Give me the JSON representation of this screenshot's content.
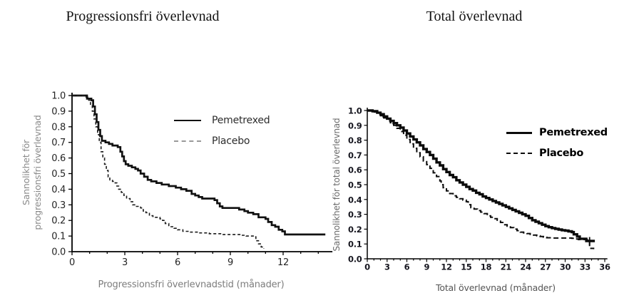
{
  "chart_data": [
    {
      "type": "line",
      "subtype": "kaplan-meier-step",
      "title": "Progressionsfri överlevnad",
      "xlabel": "Progressionsfri överlevnadstid (månader)",
      "ylabel_lines": [
        "Sannolikhet för",
        "progressionsfri överlevnad"
      ],
      "xlim": [
        0,
        14.8
      ],
      "ylim": [
        0,
        1.0
      ],
      "x_tick_values": [
        0,
        3,
        6,
        9,
        12
      ],
      "x_tick_labels": [
        "0",
        "3",
        "6",
        "9",
        "12"
      ],
      "x_minor_tick_step": 1,
      "x_minor_tick_max": 14,
      "y_tick_labels": [
        "0.0",
        "0.1",
        "0.2",
        "0.3",
        "0.4",
        "0.5",
        "0.6",
        "0.7",
        "0.8",
        "0.9",
        "1.0"
      ],
      "grid": false,
      "legend_position": "upper-right-inside",
      "series": [
        {
          "name": "Pemetrexed",
          "line_style": "solid",
          "color": "#111111",
          "legend_sample_color": "#111111",
          "points": [
            [
              0,
              1.0
            ],
            [
              0.85,
              0.98
            ],
            [
              1.1,
              0.97
            ],
            [
              1.2,
              0.93
            ],
            [
              1.3,
              0.88
            ],
            [
              1.4,
              0.83
            ],
            [
              1.5,
              0.78
            ],
            [
              1.6,
              0.74
            ],
            [
              1.7,
              0.71
            ],
            [
              1.9,
              0.7
            ],
            [
              2.1,
              0.69
            ],
            [
              2.3,
              0.68
            ],
            [
              2.6,
              0.67
            ],
            [
              2.75,
              0.64
            ],
            [
              2.85,
              0.61
            ],
            [
              2.95,
              0.58
            ],
            [
              3.05,
              0.56
            ],
            [
              3.2,
              0.55
            ],
            [
              3.4,
              0.54
            ],
            [
              3.6,
              0.53
            ],
            [
              3.75,
              0.52
            ],
            [
              3.9,
              0.5
            ],
            [
              4.1,
              0.48
            ],
            [
              4.3,
              0.46
            ],
            [
              4.5,
              0.45
            ],
            [
              4.8,
              0.44
            ],
            [
              5.1,
              0.43
            ],
            [
              5.5,
              0.42
            ],
            [
              5.9,
              0.41
            ],
            [
              6.2,
              0.4
            ],
            [
              6.5,
              0.39
            ],
            [
              6.8,
              0.37
            ],
            [
              7.0,
              0.36
            ],
            [
              7.2,
              0.35
            ],
            [
              7.4,
              0.34
            ],
            [
              8.1,
              0.33
            ],
            [
              8.25,
              0.31
            ],
            [
              8.4,
              0.29
            ],
            [
              8.55,
              0.28
            ],
            [
              9.5,
              0.27
            ],
            [
              9.8,
              0.26
            ],
            [
              10.0,
              0.25
            ],
            [
              10.3,
              0.24
            ],
            [
              10.6,
              0.22
            ],
            [
              11.0,
              0.21
            ],
            [
              11.15,
              0.19
            ],
            [
              11.35,
              0.17
            ],
            [
              11.55,
              0.16
            ],
            [
              11.75,
              0.14
            ],
            [
              11.95,
              0.13
            ],
            [
              12.1,
              0.11
            ],
            [
              14.4,
              0.11
            ]
          ]
        },
        {
          "name": "Placebo",
          "line_style": "dashed",
          "color": "#1a1a1a",
          "legend_sample_color": "#999999",
          "points": [
            [
              0,
              1.0
            ],
            [
              0.8,
              0.99
            ],
            [
              0.95,
              0.97
            ],
            [
              1.05,
              0.94
            ],
            [
              1.15,
              0.9
            ],
            [
              1.25,
              0.85
            ],
            [
              1.35,
              0.8
            ],
            [
              1.45,
              0.75
            ],
            [
              1.55,
              0.7
            ],
            [
              1.65,
              0.64
            ],
            [
              1.75,
              0.6
            ],
            [
              1.85,
              0.56
            ],
            [
              1.95,
              0.52
            ],
            [
              2.05,
              0.48
            ],
            [
              2.15,
              0.46
            ],
            [
              2.3,
              0.45
            ],
            [
              2.45,
              0.44
            ],
            [
              2.55,
              0.42
            ],
            [
              2.65,
              0.4
            ],
            [
              2.8,
              0.38
            ],
            [
              2.95,
              0.36
            ],
            [
              3.1,
              0.34
            ],
            [
              3.3,
              0.32
            ],
            [
              3.45,
              0.3
            ],
            [
              3.6,
              0.29
            ],
            [
              3.9,
              0.28
            ],
            [
              4.05,
              0.26
            ],
            [
              4.2,
              0.25
            ],
            [
              4.4,
              0.23
            ],
            [
              4.6,
              0.22
            ],
            [
              5.0,
              0.21
            ],
            [
              5.15,
              0.2
            ],
            [
              5.3,
              0.18
            ],
            [
              5.5,
              0.16
            ],
            [
              5.8,
              0.15
            ],
            [
              6.0,
              0.14
            ],
            [
              6.3,
              0.13
            ],
            [
              6.7,
              0.125
            ],
            [
              7.2,
              0.12
            ],
            [
              7.8,
              0.115
            ],
            [
              8.5,
              0.11
            ],
            [
              9.6,
              0.105
            ],
            [
              9.9,
              0.1
            ],
            [
              10.3,
              0.095
            ],
            [
              10.45,
              0.07
            ],
            [
              10.6,
              0.05
            ],
            [
              10.75,
              0.03
            ],
            [
              10.9,
              0.02
            ]
          ]
        }
      ]
    },
    {
      "type": "line",
      "subtype": "kaplan-meier-step",
      "title": "Total överlevnad",
      "xlabel": "Total överlevnad (månader)",
      "ylabel": "Sannolikhet för total överlevnad",
      "xlim": [
        0,
        36.4
      ],
      "ylim": [
        0,
        1.0
      ],
      "x_tick_values": [
        0,
        3,
        6,
        9,
        12,
        15,
        18,
        21,
        24,
        27,
        30,
        33,
        36
      ],
      "x_tick_labels": [
        "0",
        "3",
        "6",
        "9",
        "12",
        "15",
        "18",
        "21",
        "24",
        "27",
        "30",
        "33",
        "36"
      ],
      "x_minor_tick_step": 1,
      "x_minor_tick_max": 36,
      "y_tick_labels": [
        "0.0",
        "0.1",
        "0.2",
        "0.3",
        "0.4",
        "0.5",
        "0.6",
        "0.7",
        "0.8",
        "0.9",
        "1.0"
      ],
      "grid": false,
      "legend_position": "upper-right-inside",
      "series": [
        {
          "name": "Pemetrexed",
          "line_style": "solid",
          "color": "#0b0b0b",
          "legend_sample_color": "#0b0b0b",
          "censor_marks": [
            [
              33.7,
              0.12
            ]
          ],
          "points": [
            [
              0,
              1.0
            ],
            [
              0.8,
              0.995
            ],
            [
              1.5,
              0.985
            ],
            [
              2,
              0.975
            ],
            [
              2.5,
              0.96
            ],
            [
              3,
              0.945
            ],
            [
              3.5,
              0.93
            ],
            [
              4,
              0.915
            ],
            [
              4.5,
              0.9
            ],
            [
              5,
              0.885
            ],
            [
              5.5,
              0.865
            ],
            [
              6,
              0.845
            ],
            [
              6.5,
              0.825
            ],
            [
              7,
              0.805
            ],
            [
              7.5,
              0.785
            ],
            [
              8,
              0.765
            ],
            [
              8.5,
              0.74
            ],
            [
              9,
              0.72
            ],
            [
              9.5,
              0.7
            ],
            [
              10,
              0.675
            ],
            [
              10.5,
              0.65
            ],
            [
              11,
              0.63
            ],
            [
              11.5,
              0.605
            ],
            [
              12,
              0.585
            ],
            [
              12.5,
              0.565
            ],
            [
              13,
              0.55
            ],
            [
              13.5,
              0.53
            ],
            [
              14,
              0.515
            ],
            [
              14.5,
              0.5
            ],
            [
              15,
              0.485
            ],
            [
              15.5,
              0.47
            ],
            [
              16,
              0.46
            ],
            [
              16.5,
              0.445
            ],
            [
              17,
              0.435
            ],
            [
              17.5,
              0.42
            ],
            [
              18,
              0.41
            ],
            [
              18.5,
              0.4
            ],
            [
              19,
              0.39
            ],
            [
              19.5,
              0.38
            ],
            [
              20,
              0.37
            ],
            [
              20.5,
              0.36
            ],
            [
              21,
              0.35
            ],
            [
              21.5,
              0.34
            ],
            [
              22,
              0.33
            ],
            [
              22.5,
              0.32
            ],
            [
              23,
              0.31
            ],
            [
              23.5,
              0.3
            ],
            [
              24,
              0.29
            ],
            [
              24.5,
              0.275
            ],
            [
              25,
              0.26
            ],
            [
              25.5,
              0.25
            ],
            [
              26,
              0.24
            ],
            [
              26.5,
              0.23
            ],
            [
              27,
              0.22
            ],
            [
              27.5,
              0.213
            ],
            [
              28,
              0.207
            ],
            [
              28.5,
              0.202
            ],
            [
              29,
              0.197
            ],
            [
              29.5,
              0.193
            ],
            [
              30,
              0.19
            ],
            [
              30.5,
              0.185
            ],
            [
              31,
              0.18
            ],
            [
              31.3,
              0.165
            ],
            [
              31.8,
              0.15
            ],
            [
              32.2,
              0.135
            ],
            [
              33.2,
              0.12
            ],
            [
              34.5,
              0.12
            ]
          ]
        },
        {
          "name": "Placebo",
          "line_style": "dashed",
          "color": "#0b0b0b",
          "legend_sample_color": "#0b0b0b",
          "points": [
            [
              0,
              1.0
            ],
            [
              0.7,
              0.99
            ],
            [
              1.5,
              0.98
            ],
            [
              2,
              0.965
            ],
            [
              2.5,
              0.95
            ],
            [
              3,
              0.935
            ],
            [
              3.5,
              0.918
            ],
            [
              4,
              0.9
            ],
            [
              4.5,
              0.88
            ],
            [
              5,
              0.858
            ],
            [
              5.5,
              0.833
            ],
            [
              6,
              0.805
            ],
            [
              6.5,
              0.775
            ],
            [
              7,
              0.745
            ],
            [
              7.5,
              0.715
            ],
            [
              8,
              0.688
            ],
            [
              8.5,
              0.66
            ],
            [
              9,
              0.635
            ],
            [
              9.5,
              0.61
            ],
            [
              10,
              0.58
            ],
            [
              10.5,
              0.555
            ],
            [
              11,
              0.525
            ],
            [
              11.2,
              0.5
            ],
            [
              11.5,
              0.48
            ],
            [
              12,
              0.458
            ],
            [
              12.5,
              0.44
            ],
            [
              13,
              0.425
            ],
            [
              13.5,
              0.415
            ],
            [
              14,
              0.405
            ],
            [
              14.5,
              0.395
            ],
            [
              15,
              0.385
            ],
            [
              15.3,
              0.365
            ],
            [
              15.7,
              0.345
            ],
            [
              16.2,
              0.335
            ],
            [
              16.7,
              0.325
            ],
            [
              17.2,
              0.315
            ],
            [
              17.7,
              0.305
            ],
            [
              18.2,
              0.29
            ],
            [
              18.7,
              0.28
            ],
            [
              19.2,
              0.27
            ],
            [
              19.7,
              0.26
            ],
            [
              20.2,
              0.245
            ],
            [
              20.7,
              0.23
            ],
            [
              21.2,
              0.22
            ],
            [
              21.7,
              0.21
            ],
            [
              22.2,
              0.2
            ],
            [
              22.7,
              0.19
            ],
            [
              23.2,
              0.18
            ],
            [
              23.7,
              0.175
            ],
            [
              24.2,
              0.17
            ],
            [
              24.7,
              0.165
            ],
            [
              25.2,
              0.16
            ],
            [
              25.7,
              0.155
            ],
            [
              26.2,
              0.15
            ],
            [
              26.7,
              0.145
            ],
            [
              27.2,
              0.142
            ],
            [
              28,
              0.14
            ],
            [
              31,
              0.138
            ],
            [
              31.5,
              0.133
            ],
            [
              32,
              0.13
            ],
            [
              33.3,
              0.128
            ],
            [
              33.7,
              0.07
            ],
            [
              34.3,
              0.065
            ]
          ]
        }
      ]
    }
  ]
}
